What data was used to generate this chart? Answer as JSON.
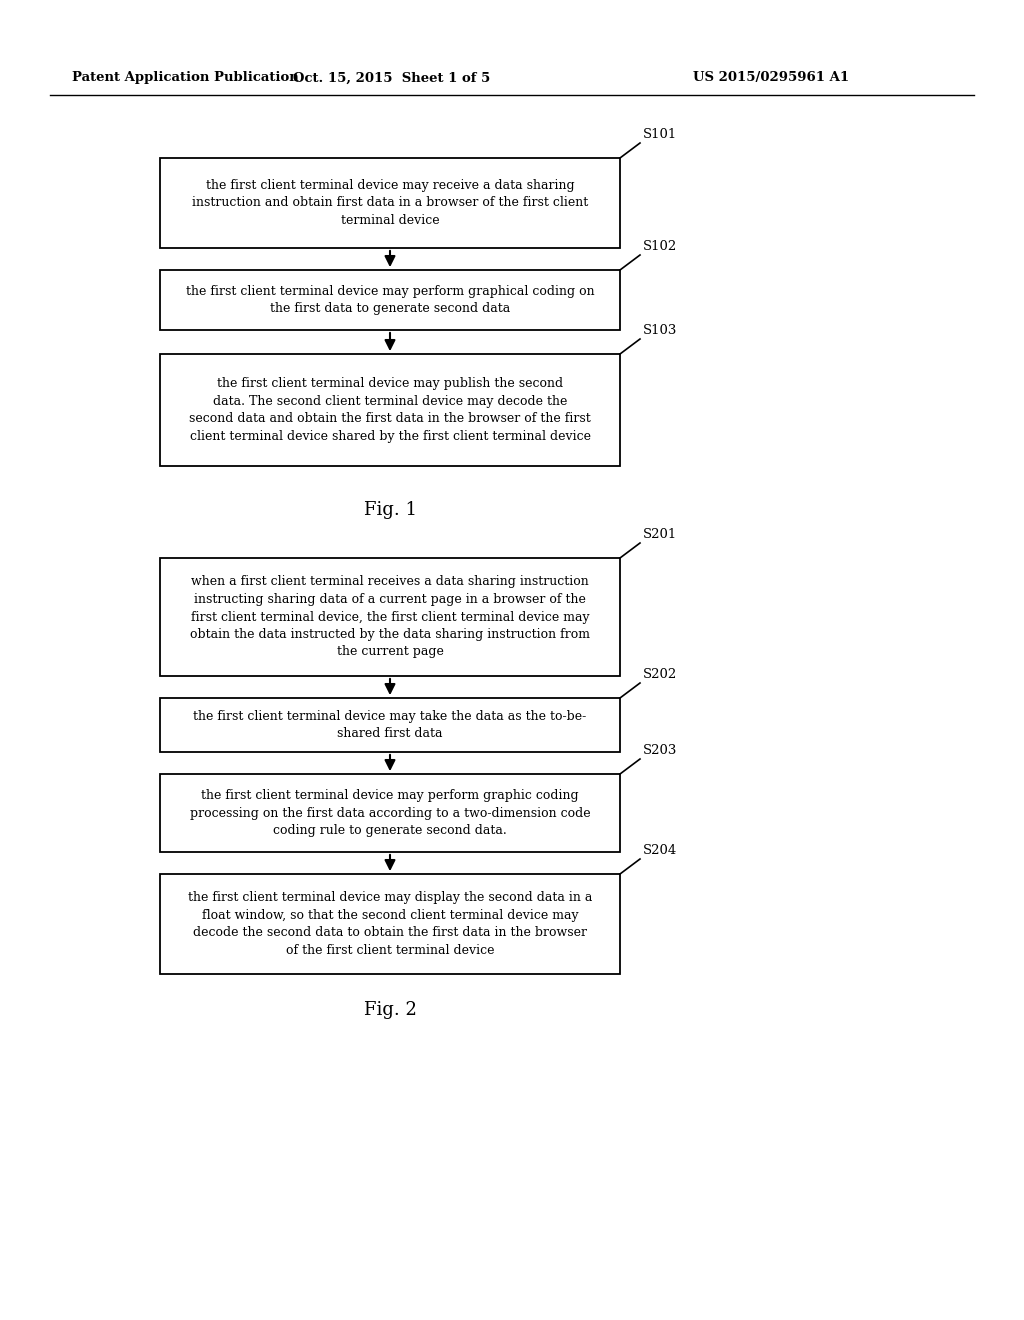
{
  "bg_color": "#ffffff",
  "header_left": "Patent Application Publication",
  "header_mid": "Oct. 15, 2015  Sheet 1 of 5",
  "header_right": "US 2015/0295961 A1",
  "fig1_title": "Fig. 1",
  "fig2_title": "Fig. 2",
  "fig1_boxes": [
    {
      "label": "S101",
      "text": "the first client terminal device may receive a data sharing\ninstruction and obtain first data in a browser of the first client\nterminal device"
    },
    {
      "label": "S102",
      "text": "the first client terminal device may perform graphical coding on\nthe first data to generate second data"
    },
    {
      "label": "S103",
      "text": "the first client terminal device may publish the second\ndata. The second client terminal device may decode the\nsecond data and obtain the first data in the browser of the first\nclient terminal device shared by the first client terminal device"
    }
  ],
  "fig2_boxes": [
    {
      "label": "S201",
      "text": "when a first client terminal receives a data sharing instruction\ninstructing sharing data of a current page in a browser of the\nfirst client terminal device, the first client terminal device may\nobtain the data instructed by the data sharing instruction from\nthe current page"
    },
    {
      "label": "S202",
      "text": "the first client terminal device may take the data as the to-be-\nshared first data"
    },
    {
      "label": "S203",
      "text": "the first client terminal device may perform graphic coding\nprocessing on the first data according to a two-dimension code\ncoding rule to generate second data."
    },
    {
      "label": "S204",
      "text": "the first client terminal device may display the second data in a\nfloat window, so that the second client terminal device may\ndecode the second data to obtain the first data in the browser\nof the first client terminal device"
    }
  ],
  "box_color": "#ffffff",
  "box_edge_color": "#000000",
  "text_color": "#000000",
  "arrow_color": "#000000",
  "font_size": 9.0,
  "label_font_size": 9.5,
  "fig_label_font_size": 13
}
